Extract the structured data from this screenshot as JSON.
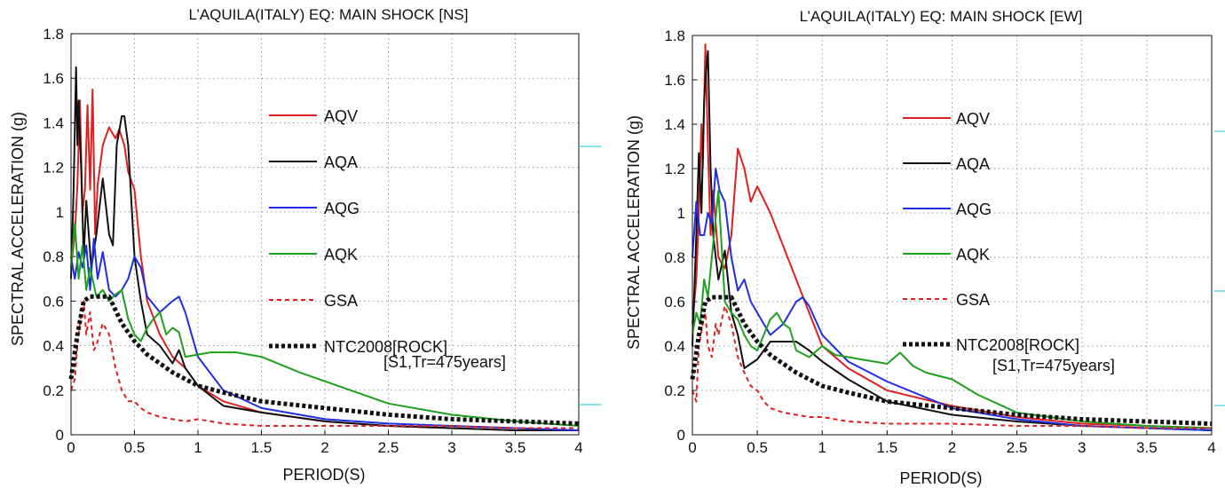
{
  "chart_data": [
    {
      "type": "line",
      "title": "L’AQUILA(ITALY) EQ: MAIN SHOCK [NS]",
      "xlabel": "PERIOD(S)",
      "ylabel": "SPECTRAL ACCELERATION (g)",
      "xlim": [
        0,
        4
      ],
      "ylim": [
        0,
        1.8
      ],
      "xticks": [
        "0",
        "0.5",
        "1",
        "1.5",
        "2",
        "2.5",
        "3",
        "3.5",
        "4"
      ],
      "yticks": [
        "0",
        "0.2",
        "0.4",
        "0.6",
        "0.8",
        "1",
        "1.2",
        "1.4",
        "1.6",
        "1.8"
      ],
      "grid": true,
      "legend_position": "center-right",
      "legend_note": "[S1,Tr=475years]",
      "series": [
        {
          "name": "AQV",
          "color": "#e02020",
          "dash": "solid",
          "x": [
            0,
            0.03,
            0.05,
            0.07,
            0.09,
            0.11,
            0.13,
            0.15,
            0.17,
            0.19,
            0.21,
            0.25,
            0.3,
            0.35,
            0.38,
            0.42,
            0.45,
            0.5,
            0.55,
            0.6,
            0.7,
            0.8,
            0.9,
            1.0,
            1.2,
            1.5,
            2.0,
            2.5,
            3.0,
            3.5,
            4.0
          ],
          "y": [
            0.75,
            0.9,
            1.12,
            1.5,
            1.0,
            1.1,
            1.48,
            1.1,
            1.55,
            0.9,
            1.12,
            1.3,
            1.38,
            1.33,
            1.37,
            1.3,
            1.18,
            1.1,
            0.8,
            0.6,
            0.45,
            0.35,
            0.3,
            0.22,
            0.15,
            0.1,
            0.06,
            0.04,
            0.03,
            0.02,
            0.02
          ]
        },
        {
          "name": "AQA",
          "color": "#111111",
          "dash": "solid",
          "x": [
            0,
            0.02,
            0.04,
            0.05,
            0.06,
            0.08,
            0.1,
            0.12,
            0.14,
            0.16,
            0.2,
            0.25,
            0.3,
            0.33,
            0.36,
            0.4,
            0.42,
            0.45,
            0.5,
            0.55,
            0.6,
            0.7,
            0.8,
            0.85,
            0.9,
            1.0,
            1.2,
            1.5,
            2.0,
            2.5,
            3.0,
            3.5,
            4.0
          ],
          "y": [
            0.7,
            1.1,
            1.65,
            1.3,
            1.5,
            1.2,
            0.8,
            1.05,
            0.9,
            0.75,
            0.9,
            1.15,
            0.9,
            0.85,
            1.3,
            1.43,
            1.43,
            1.3,
            0.8,
            0.6,
            0.45,
            0.4,
            0.32,
            0.38,
            0.3,
            0.22,
            0.13,
            0.1,
            0.06,
            0.04,
            0.03,
            0.02,
            0.02
          ]
        },
        {
          "name": "AQG",
          "color": "#1f2ee0",
          "dash": "solid",
          "x": [
            0,
            0.03,
            0.06,
            0.09,
            0.12,
            0.15,
            0.18,
            0.21,
            0.25,
            0.3,
            0.35,
            0.4,
            0.45,
            0.5,
            0.55,
            0.6,
            0.7,
            0.8,
            0.85,
            0.9,
            1.0,
            1.2,
            1.5,
            2.0,
            2.5,
            3.0,
            3.5,
            4.0
          ],
          "y": [
            0.8,
            0.7,
            0.82,
            0.75,
            0.85,
            0.65,
            0.88,
            0.7,
            0.82,
            0.65,
            0.62,
            0.65,
            0.7,
            0.8,
            0.75,
            0.62,
            0.55,
            0.6,
            0.62,
            0.55,
            0.35,
            0.2,
            0.12,
            0.07,
            0.05,
            0.04,
            0.03,
            0.02
          ]
        },
        {
          "name": "AQK",
          "color": "#1fa01f",
          "dash": "solid",
          "x": [
            0,
            0.03,
            0.06,
            0.09,
            0.12,
            0.15,
            0.2,
            0.25,
            0.3,
            0.35,
            0.4,
            0.45,
            0.5,
            0.55,
            0.6,
            0.65,
            0.7,
            0.75,
            0.8,
            0.85,
            0.9,
            1.0,
            1.1,
            1.3,
            1.5,
            1.8,
            2.0,
            2.5,
            3.0,
            3.5,
            4.0
          ],
          "y": [
            0.75,
            0.95,
            0.7,
            0.85,
            0.65,
            0.75,
            0.62,
            0.65,
            0.6,
            0.63,
            0.65,
            0.52,
            0.45,
            0.42,
            0.48,
            0.52,
            0.55,
            0.45,
            0.48,
            0.46,
            0.35,
            0.36,
            0.37,
            0.37,
            0.35,
            0.28,
            0.24,
            0.14,
            0.09,
            0.06,
            0.04
          ]
        },
        {
          "name": "GSA",
          "color": "#e02020",
          "dash": "dashed",
          "x": [
            0,
            0.03,
            0.05,
            0.08,
            0.1,
            0.12,
            0.15,
            0.18,
            0.2,
            0.25,
            0.3,
            0.35,
            0.4,
            0.45,
            0.5,
            0.55,
            0.6,
            0.7,
            0.8,
            0.9,
            1.0,
            1.2,
            1.5,
            2.0,
            2.5,
            3.0,
            3.5,
            4.0
          ],
          "y": [
            0.2,
            0.25,
            0.4,
            0.55,
            0.6,
            0.45,
            0.55,
            0.38,
            0.4,
            0.5,
            0.45,
            0.3,
            0.2,
            0.15,
            0.15,
            0.12,
            0.1,
            0.08,
            0.07,
            0.06,
            0.07,
            0.05,
            0.04,
            0.04,
            0.04,
            0.04,
            0.03,
            0.03
          ]
        },
        {
          "name": "NTC2008[ROCK]",
          "color": "#111111",
          "dash": "dotted-thick",
          "x": [
            0,
            0.05,
            0.1,
            0.15,
            0.2,
            0.3,
            0.4,
            0.5,
            0.6,
            0.7,
            0.8,
            0.9,
            1.0,
            1.2,
            1.5,
            2.0,
            2.5,
            3.0,
            3.5,
            4.0
          ],
          "y": [
            0.25,
            0.45,
            0.6,
            0.62,
            0.62,
            0.62,
            0.5,
            0.42,
            0.36,
            0.32,
            0.28,
            0.25,
            0.22,
            0.19,
            0.15,
            0.12,
            0.09,
            0.07,
            0.06,
            0.05
          ]
        }
      ]
    },
    {
      "type": "line",
      "title": "L’AQUILA(ITALY) EQ: MAIN SHOCK [EW]",
      "xlabel": "PERIOD(S)",
      "ylabel": "SPECTRAL ACCELERATION (g)",
      "xlim": [
        0,
        4
      ],
      "ylim": [
        0,
        1.8
      ],
      "xticks": [
        "0",
        "0.5",
        "1",
        "1.5",
        "2",
        "2.5",
        "3",
        "3.5",
        "4"
      ],
      "yticks": [
        "0",
        "0.2",
        "0.4",
        "0.6",
        "0.8",
        "1",
        "1.2",
        "1.4",
        "1.6",
        "1.8"
      ],
      "grid": true,
      "legend_position": "center-right",
      "legend_note": "[S1,Tr=475years]",
      "series": [
        {
          "name": "AQV",
          "color": "#e02020",
          "dash": "solid",
          "x": [
            0,
            0.03,
            0.05,
            0.07,
            0.08,
            0.1,
            0.12,
            0.14,
            0.16,
            0.2,
            0.25,
            0.3,
            0.35,
            0.4,
            0.45,
            0.5,
            0.6,
            0.7,
            0.8,
            0.9,
            1.0,
            1.2,
            1.5,
            2.0,
            2.5,
            3.0,
            3.5,
            4.0
          ],
          "y": [
            0.5,
            0.7,
            1.0,
            1.4,
            1.2,
            1.76,
            1.3,
            0.9,
            1.1,
            0.8,
            0.75,
            0.9,
            1.29,
            1.2,
            1.05,
            1.12,
            1.0,
            0.85,
            0.7,
            0.55,
            0.4,
            0.3,
            0.2,
            0.13,
            0.08,
            0.05,
            0.04,
            0.03
          ]
        },
        {
          "name": "AQA",
          "color": "#111111",
          "dash": "solid",
          "x": [
            0,
            0.03,
            0.05,
            0.07,
            0.09,
            0.1,
            0.12,
            0.14,
            0.16,
            0.2,
            0.25,
            0.3,
            0.35,
            0.4,
            0.5,
            0.6,
            0.7,
            0.8,
            0.9,
            1.0,
            1.2,
            1.5,
            2.0,
            2.5,
            3.0,
            3.5,
            4.0
          ],
          "y": [
            0.4,
            0.9,
            1.27,
            1.0,
            1.5,
            1.6,
            1.73,
            1.2,
            0.9,
            0.7,
            0.83,
            0.55,
            0.45,
            0.3,
            0.34,
            0.42,
            0.42,
            0.42,
            0.38,
            0.33,
            0.25,
            0.15,
            0.09,
            0.06,
            0.04,
            0.03,
            0.02
          ]
        },
        {
          "name": "AQG",
          "color": "#1f2ee0",
          "dash": "solid",
          "x": [
            0,
            0.03,
            0.06,
            0.09,
            0.12,
            0.15,
            0.18,
            0.21,
            0.25,
            0.3,
            0.35,
            0.4,
            0.45,
            0.5,
            0.55,
            0.6,
            0.7,
            0.8,
            0.85,
            0.9,
            1.0,
            1.2,
            1.5,
            2.0,
            2.5,
            3.0,
            3.5,
            4.0
          ],
          "y": [
            0.8,
            1.05,
            0.9,
            0.9,
            1.0,
            0.95,
            1.2,
            1.1,
            1.05,
            0.8,
            0.65,
            0.7,
            0.6,
            0.55,
            0.5,
            0.45,
            0.5,
            0.6,
            0.62,
            0.58,
            0.45,
            0.33,
            0.24,
            0.12,
            0.07,
            0.04,
            0.03,
            0.02
          ]
        },
        {
          "name": "AQK",
          "color": "#1fa01f",
          "dash": "solid",
          "x": [
            0,
            0.03,
            0.06,
            0.09,
            0.12,
            0.15,
            0.2,
            0.25,
            0.3,
            0.35,
            0.4,
            0.45,
            0.5,
            0.55,
            0.6,
            0.65,
            0.7,
            0.75,
            0.8,
            0.9,
            1.0,
            1.1,
            1.2,
            1.3,
            1.4,
            1.5,
            1.6,
            1.7,
            1.8,
            2.0,
            2.2,
            2.5,
            3.0,
            3.5,
            4.0
          ],
          "y": [
            0.45,
            0.55,
            0.5,
            0.7,
            0.62,
            0.8,
            1.1,
            0.6,
            0.55,
            0.52,
            0.45,
            0.4,
            0.38,
            0.45,
            0.52,
            0.55,
            0.5,
            0.48,
            0.38,
            0.35,
            0.4,
            0.36,
            0.35,
            0.34,
            0.33,
            0.32,
            0.37,
            0.31,
            0.28,
            0.25,
            0.18,
            0.1,
            0.06,
            0.04,
            0.03
          ]
        },
        {
          "name": "GSA",
          "color": "#e02020",
          "dash": "dashed",
          "x": [
            0,
            0.03,
            0.05,
            0.08,
            0.1,
            0.12,
            0.15,
            0.18,
            0.2,
            0.25,
            0.3,
            0.35,
            0.4,
            0.45,
            0.5,
            0.55,
            0.6,
            0.7,
            0.8,
            0.9,
            1.0,
            1.2,
            1.5,
            2.0,
            2.5,
            3.0,
            3.5,
            4.0
          ],
          "y": [
            0.2,
            0.15,
            0.4,
            0.5,
            0.55,
            0.4,
            0.35,
            0.5,
            0.45,
            0.58,
            0.5,
            0.35,
            0.28,
            0.22,
            0.2,
            0.15,
            0.12,
            0.1,
            0.09,
            0.08,
            0.08,
            0.06,
            0.05,
            0.05,
            0.04,
            0.04,
            0.03,
            0.03
          ]
        },
        {
          "name": "NTC2008[ROCK]",
          "color": "#111111",
          "dash": "dotted-thick",
          "x": [
            0,
            0.05,
            0.1,
            0.15,
            0.2,
            0.3,
            0.4,
            0.5,
            0.6,
            0.7,
            0.8,
            0.9,
            1.0,
            1.2,
            1.5,
            2.0,
            2.5,
            3.0,
            3.5,
            4.0
          ],
          "y": [
            0.25,
            0.45,
            0.6,
            0.62,
            0.62,
            0.62,
            0.5,
            0.42,
            0.36,
            0.32,
            0.28,
            0.25,
            0.22,
            0.19,
            0.15,
            0.12,
            0.09,
            0.07,
            0.06,
            0.05
          ]
        }
      ]
    }
  ]
}
